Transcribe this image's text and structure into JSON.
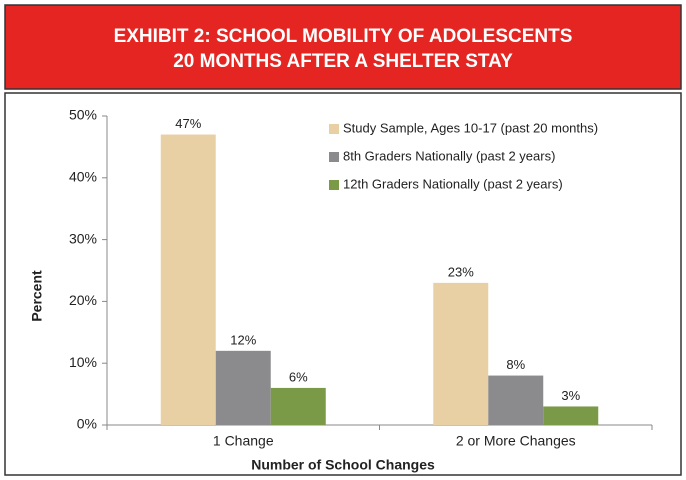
{
  "chart_data": {
    "type": "bar",
    "title": [
      "EXHIBIT 2: SCHOOL MOBILITY OF ADOLESCENTS",
      "20 MONTHS AFTER A SHELTER STAY"
    ],
    "xlabel": "Number of School Changes",
    "ylabel": "Percent",
    "categories": [
      "1 Change",
      "2 or More Changes"
    ],
    "series": [
      {
        "name": "Study Sample, Ages 10-17 (past 20 months)",
        "color": "#e8d0a4",
        "values": [
          47,
          23
        ],
        "value_labels": [
          "47%",
          "23%"
        ]
      },
      {
        "name": "8th Graders Nationally (past 2 years)",
        "color": "#8b8b8d",
        "values": [
          12,
          8
        ],
        "value_labels": [
          "12%",
          "8%"
        ]
      },
      {
        "name": "12th Graders Nationally (past 2 years)",
        "color": "#7b9a47",
        "values": [
          6,
          3
        ],
        "value_labels": [
          "6%",
          "3%"
        ]
      }
    ],
    "ylim": [
      0,
      50
    ],
    "yticks": [
      {
        "value": 0,
        "label": "0%"
      },
      {
        "value": 10,
        "label": "10%"
      },
      {
        "value": 20,
        "label": "20%"
      },
      {
        "value": 30,
        "label": "30%"
      },
      {
        "value": 40,
        "label": "40%"
      },
      {
        "value": 50,
        "label": "50%"
      }
    ],
    "legend": "upper right",
    "grid": false
  }
}
